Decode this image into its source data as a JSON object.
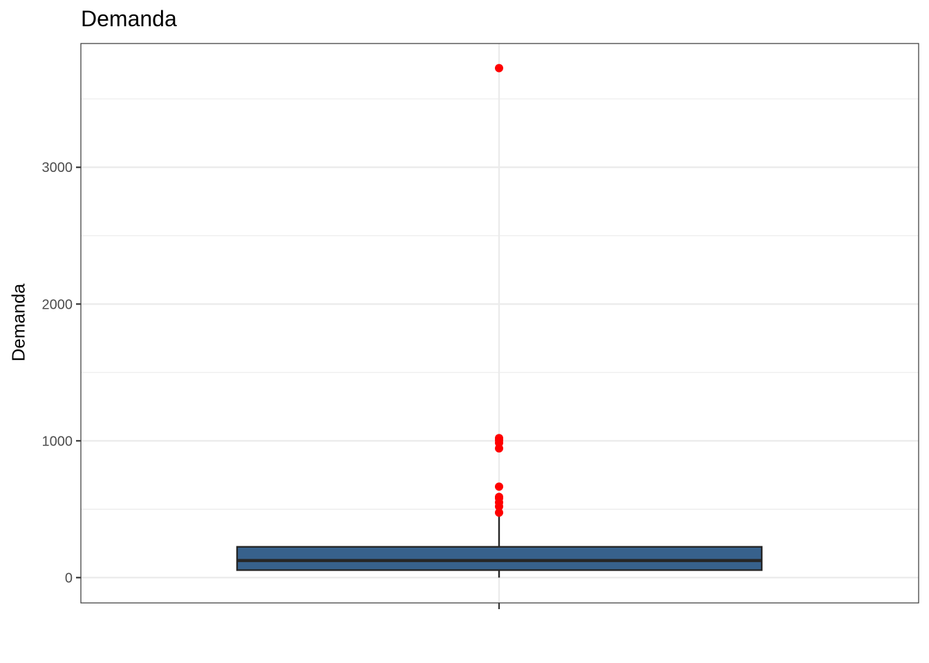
{
  "chart_data": {
    "type": "boxplot",
    "title": "Demanda",
    "xlabel": "",
    "ylabel": "Demanda",
    "ylim": [
      -185,
      3905
    ],
    "y_ticks": [
      0,
      1000,
      2000,
      3000
    ],
    "y_tick_labels": [
      "0",
      "1000",
      "2000",
      "3000"
    ],
    "grid": true,
    "box": {
      "min": 0,
      "q1": 55,
      "median": 125,
      "q3": 225,
      "max": 470
    },
    "outliers": [
      475,
      520,
      550,
      580,
      590,
      665,
      945,
      985,
      1005,
      1020,
      3725
    ],
    "colors": {
      "box_fill": "#37618c",
      "box_stroke": "#262626",
      "outlier": "#ff0000",
      "grid": "#ebebeb",
      "panel_border": "#333333"
    }
  }
}
